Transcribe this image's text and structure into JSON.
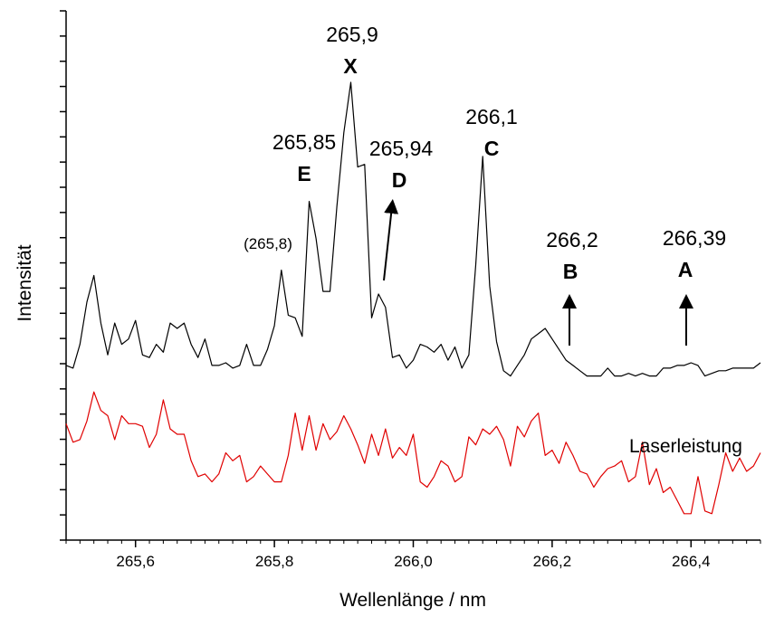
{
  "chart_data": {
    "type": "line",
    "xlabel": "Wellenlänge / nm",
    "ylabel": "Intensität",
    "xlim": [
      265.5,
      266.5
    ],
    "ylim": [
      0,
      100
    ],
    "x_ticks": [
      {
        "value": 265.6,
        "label": "265,6"
      },
      {
        "value": 265.8,
        "label": "265,8"
      },
      {
        "value": 266.0,
        "label": "266,0"
      },
      {
        "value": 266.2,
        "label": "266,2"
      },
      {
        "value": 266.4,
        "label": "266,4"
      }
    ],
    "x_minor_step": 0.02,
    "y_tick_count": 20,
    "y_tick_labels": false,
    "grid": false,
    "series": [
      {
        "color": "#000000",
        "x": [
          265.5,
          265.51,
          265.52,
          265.53,
          265.54,
          265.55,
          265.56,
          265.57,
          265.58,
          265.59,
          265.6,
          265.61,
          265.62,
          265.63,
          265.64,
          265.65,
          265.66,
          265.67,
          265.68,
          265.69,
          265.7,
          265.71,
          265.72,
          265.73,
          265.74,
          265.75,
          265.76,
          265.77,
          265.78,
          265.79,
          265.8,
          265.81,
          265.82,
          265.83,
          265.84,
          265.85,
          265.86,
          265.87,
          265.88,
          265.89,
          265.9,
          265.91,
          265.92,
          265.93,
          265.94,
          265.95,
          265.96,
          265.97,
          265.98,
          265.99,
          266.0,
          266.01,
          266.02,
          266.03,
          266.04,
          266.05,
          266.06,
          266.07,
          266.08,
          266.09,
          266.1,
          266.11,
          266.12,
          266.13,
          266.14,
          266.15,
          266.16,
          266.17,
          266.18,
          266.19,
          266.2,
          266.21,
          266.22,
          266.23,
          266.24,
          266.25,
          266.26,
          266.27,
          266.28,
          266.29,
          266.3,
          266.31,
          266.32,
          266.33,
          266.34,
          266.35,
          266.36,
          266.37,
          266.38,
          266.39,
          266.4,
          266.41,
          266.42,
          266.43,
          266.44,
          266.45,
          266.46,
          266.47,
          266.48,
          266.49,
          266.5
        ],
        "y": [
          33,
          32.5,
          37,
          45,
          50,
          41,
          35,
          41,
          37,
          38,
          41.5,
          35,
          34.5,
          37,
          35.5,
          41,
          40,
          41,
          37,
          34.5,
          38,
          33,
          33,
          33.5,
          32.5,
          33,
          37,
          33,
          33,
          36,
          40.5,
          51,
          42.5,
          42,
          38.5,
          64,
          57,
          47,
          47,
          63,
          77,
          86.5,
          70.5,
          71,
          42,
          46.5,
          44,
          34.5,
          35,
          32.5,
          34,
          37,
          36.5,
          35.5,
          37,
          34,
          36.5,
          32.5,
          35,
          52,
          72.5,
          48,
          37.5,
          32,
          31,
          33,
          35,
          38,
          39,
          40,
          38,
          36,
          34,
          33,
          32,
          31,
          31,
          31,
          32.5,
          31,
          31,
          31.5,
          31,
          31.5,
          31,
          31,
          32.5,
          32.5,
          33,
          33,
          33.5,
          33,
          31,
          31.5,
          32,
          32,
          32.5,
          32.5,
          32.5,
          32.5,
          33.5
        ]
      },
      {
        "name": "Laserleistung",
        "color": "#e00000",
        "x": [
          265.5,
          265.51,
          265.52,
          265.53,
          265.54,
          265.55,
          265.56,
          265.57,
          265.58,
          265.59,
          265.6,
          265.61,
          265.62,
          265.63,
          265.64,
          265.65,
          265.66,
          265.67,
          265.68,
          265.69,
          265.7,
          265.71,
          265.72,
          265.73,
          265.74,
          265.75,
          265.76,
          265.77,
          265.78,
          265.79,
          265.8,
          265.81,
          265.82,
          265.83,
          265.84,
          265.85,
          265.86,
          265.87,
          265.88,
          265.89,
          265.9,
          265.91,
          265.92,
          265.93,
          265.94,
          265.95,
          265.96,
          265.97,
          265.98,
          265.99,
          266.0,
          266.01,
          266.02,
          266.03,
          266.04,
          266.05,
          266.06,
          266.07,
          266.08,
          266.09,
          266.1,
          266.11,
          266.12,
          266.13,
          266.14,
          266.15,
          266.16,
          266.17,
          266.18,
          266.19,
          266.2,
          266.21,
          266.22,
          266.23,
          266.24,
          266.25,
          266.26,
          266.27,
          266.28,
          266.29,
          266.3,
          266.31,
          266.32,
          266.33,
          266.34,
          266.35,
          266.36,
          266.37,
          266.38,
          266.39,
          266.4,
          266.41,
          266.42,
          266.43,
          266.44,
          266.45,
          266.46,
          266.47,
          266.48,
          266.49,
          266.5
        ],
        "y": [
          22,
          18.5,
          19,
          22.5,
          28,
          24.5,
          23.5,
          19,
          23.5,
          22,
          22,
          21.5,
          17.5,
          20,
          26.5,
          21,
          20,
          20,
          15,
          12,
          12.5,
          11,
          12.5,
          16.5,
          15,
          16,
          11,
          12,
          14,
          12.5,
          11,
          11,
          16,
          24,
          17,
          23.5,
          17,
          22,
          19,
          20.5,
          23.5,
          21,
          18,
          14.5,
          20,
          16,
          21,
          15.5,
          17.5,
          16,
          20,
          11,
          10,
          12,
          15,
          14,
          11,
          12,
          19.5,
          18,
          21,
          20,
          21.5,
          19,
          14,
          21.5,
          19.5,
          22.5,
          24,
          16,
          17,
          14.5,
          18.5,
          16,
          13,
          12.5,
          10,
          12,
          13.5,
          14,
          15,
          11,
          12,
          18.5,
          10.5,
          13.5,
          9,
          10,
          7.5,
          5,
          5,
          12,
          5.5,
          5,
          10.5,
          16.5,
          13,
          15.5,
          13,
          14,
          16.5
        ]
      }
    ]
  },
  "series_label": "Laserleistung",
  "annotations": [
    {
      "number": "(265,8)",
      "number_size": "small",
      "letter": ""
    },
    {
      "number": "265,85",
      "number_size": "large",
      "letter": "E"
    },
    {
      "number": "265,9",
      "number_size": "large",
      "letter": "X"
    },
    {
      "number": "265,94",
      "number_size": "large",
      "letter": "D"
    },
    {
      "number": "266,1",
      "number_size": "large",
      "letter": "C"
    },
    {
      "number": "266,2",
      "number_size": "large",
      "letter": "B"
    },
    {
      "number": "266,39",
      "number_size": "large",
      "letter": "A"
    }
  ]
}
